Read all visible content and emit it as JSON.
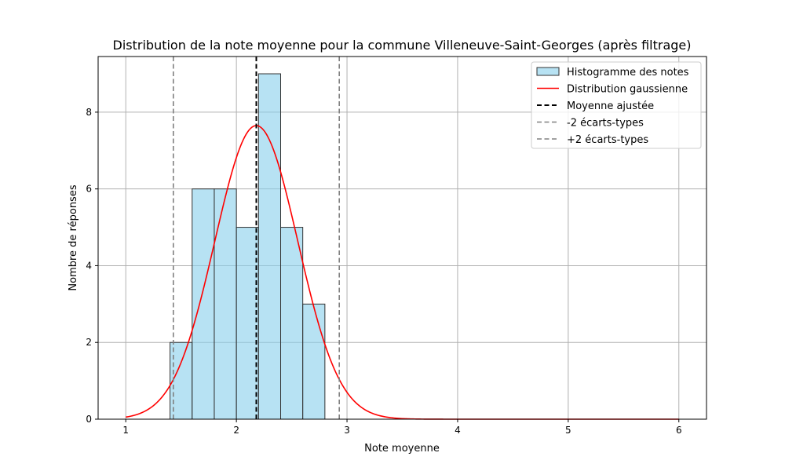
{
  "chart_data": {
    "type": "bar",
    "title": "Distribution de la note moyenne pour la commune Villeneuve-Saint-Georges (après filtrage)",
    "xlabel": "Note moyenne",
    "ylabel": "Nombre de réponses",
    "xlim": [
      0.75,
      6.25
    ],
    "ylim": [
      0,
      9.45
    ],
    "xticks": [
      1,
      2,
      3,
      4,
      5,
      6
    ],
    "yticks": [
      0,
      2,
      4,
      6,
      8
    ],
    "grid": true,
    "legend_position": "top-right",
    "histogram": {
      "name": "Histogramme des notes",
      "color": "#87ceeb",
      "edge_color": "#333333",
      "bins": [
        {
          "start": 1.4,
          "end": 1.6,
          "count": 2
        },
        {
          "start": 1.6,
          "end": 1.8,
          "count": 6
        },
        {
          "start": 1.8,
          "end": 2.0,
          "count": 6
        },
        {
          "start": 2.0,
          "end": 2.2,
          "count": 5
        },
        {
          "start": 2.2,
          "end": 2.4,
          "count": 9
        },
        {
          "start": 2.4,
          "end": 2.6,
          "count": 5
        },
        {
          "start": 2.6,
          "end": 2.8,
          "count": 3
        }
      ]
    },
    "gaussian": {
      "name": "Distribution gaussienne",
      "color": "#ff0000",
      "mean": 2.18,
      "std": 0.375,
      "peak": 7.65,
      "x_range": [
        1,
        6
      ]
    },
    "lines": [
      {
        "name": "Moyenne ajustée",
        "x": 2.18,
        "color": "#000000"
      },
      {
        "name": "-2 écarts-types",
        "x": 1.43,
        "color": "#808080"
      },
      {
        "name": "+2 écarts-types",
        "x": 2.93,
        "color": "#808080"
      }
    ]
  }
}
